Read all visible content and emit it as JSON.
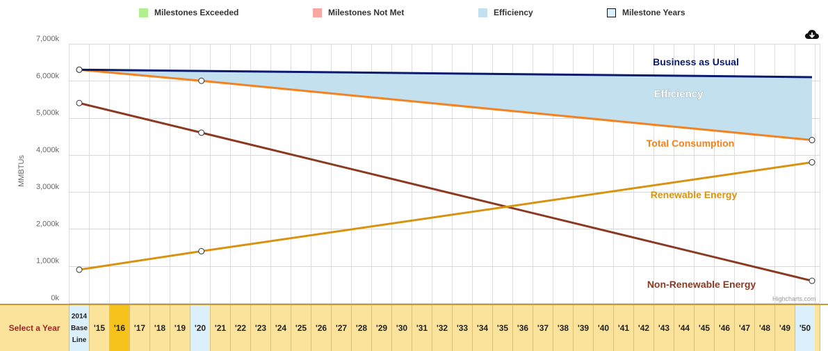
{
  "legend": [
    {
      "label": "Milestones Exceeded",
      "color": "#b1ee8f",
      "border": "#b1ee8f"
    },
    {
      "label": "Milestones Not Met",
      "color": "#f9a7a3",
      "border": "#f9a7a3"
    },
    {
      "label": "Efficiency",
      "color": "#c2e0ee",
      "border": "#c2e0ee"
    },
    {
      "label": "Milestone Years",
      "color": "#dcf0fb",
      "border": "#111111"
    }
  ],
  "credits": "Highcharts.com",
  "download_icon": "cloud-download-icon",
  "year_bar": {
    "label": "Select a Year",
    "selected": "'16",
    "years": [
      "2014\nBase\nLine",
      "'15",
      "'16",
      "'17",
      "'18",
      "'19",
      "'20",
      "'21",
      "'22",
      "'23",
      "'24",
      "'25",
      "'26",
      "'27",
      "'28",
      "'29",
      "'30",
      "'31",
      "'32",
      "'33",
      "'34",
      "'35",
      "'36",
      "'37",
      "'38",
      "'39",
      "'40",
      "'41",
      "'42",
      "'43",
      "'44",
      "'45",
      "'46",
      "'47",
      "'48",
      "'49",
      "'50"
    ],
    "milestone_years": [
      "2014\nBase\nLine",
      "'20",
      "'50"
    ],
    "colors": {
      "bar": "#fbe39c",
      "selected": "#f5c31c",
      "milestone": "#dcf0fb",
      "label": "#9e2a22"
    }
  },
  "chart_data": {
    "type": "line",
    "x": [
      2014,
      2020,
      2050
    ],
    "ylabel": "MMBTUs",
    "ylim": [
      0,
      7000
    ],
    "yticks": [
      "0k",
      "1,000k",
      "2,000k",
      "3,000k",
      "4,000k",
      "5,000k",
      "6,000k",
      "7,000k"
    ],
    "grid": true,
    "series": [
      {
        "name": "Business as Usual",
        "color": "#0a1a6e",
        "points": [
          [
            2014,
            6300
          ],
          [
            2050,
            6100
          ]
        ],
        "markers": false,
        "label": "Business as Usual"
      },
      {
        "name": "Total Consumption",
        "color": "#f58220",
        "points": [
          [
            2014,
            6300
          ],
          [
            2020,
            6000
          ],
          [
            2050,
            4400
          ]
        ],
        "markers": true,
        "label": "Total Consumption"
      },
      {
        "name": "Non-Renewable Energy",
        "color": "#8b3a22",
        "points": [
          [
            2014,
            5400
          ],
          [
            2020,
            4600
          ],
          [
            2050,
            600
          ]
        ],
        "markers": true,
        "label": "Non-Renewable Energy"
      },
      {
        "name": "Renewable Energy",
        "color": "#d7930f",
        "points": [
          [
            2014,
            900
          ],
          [
            2020,
            1400
          ],
          [
            2050,
            3800
          ]
        ],
        "markers": true,
        "label": "Renewable Energy"
      }
    ],
    "area": {
      "name": "Efficiency",
      "label": "Efficiency",
      "color": "#c2e0ee",
      "between": [
        "Business as Usual",
        "Total Consumption"
      ]
    }
  }
}
